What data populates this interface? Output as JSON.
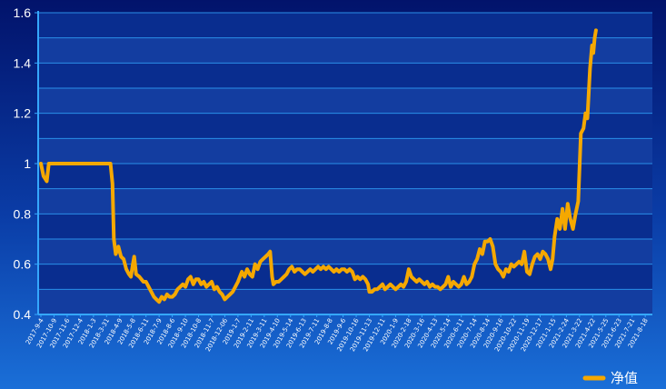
{
  "chart_data": {
    "type": "line",
    "title": "",
    "xlabel": "",
    "ylabel": "",
    "ylim": [
      0.4,
      1.6
    ],
    "yticks": [
      "0.4",
      "0.6",
      "0.8",
      "1",
      "1.2",
      "1.4",
      "1.6"
    ],
    "x_tick_labels": [
      "2017-9-4",
      "2017-10-9",
      "2017-11-6",
      "2017-12-4",
      "2018-1-3",
      "2018-3-31",
      "2018-4-9",
      "2018-5-8",
      "2018-6-11",
      "2018-7-9",
      "2018-8-6",
      "2018-9-10",
      "2018-10-8",
      "2018-11-7",
      "2018-12-06",
      "2019-1-7",
      "2019-2-11",
      "2019-3-11",
      "2019-4-10",
      "2019-5-14",
      "2019-6-13",
      "2019-7-11",
      "2019-8-8",
      "2019-9-6",
      "2019-10-16",
      "2019-11-13",
      "2019-12-11",
      "2020-1-9",
      "2020-2-18",
      "2020-3-16",
      "2020-4-13",
      "2020-5-14",
      "2020-6-11",
      "2020-7-14",
      "2020-8-14",
      "2020-9-16",
      "2020-10-22",
      "2020-11-19",
      "2020-12-17",
      "2021-1-15",
      "2021-2-24",
      "2021-3-22",
      "2021-4-22",
      "2021-5-25",
      "2021-6-23",
      "2021-7-21",
      "2021-8-18"
    ],
    "grid": true,
    "legend_position": "bottom-right",
    "series": [
      {
        "name": "净值",
        "color": "#f5a800",
        "points": [
          [
            0,
            1.0
          ],
          [
            0.2,
            0.95
          ],
          [
            0.45,
            0.93
          ],
          [
            0.6,
            1.0
          ],
          [
            2,
            1.0
          ],
          [
            4,
            1.0
          ],
          [
            5.3,
            1.0
          ],
          [
            5.45,
            0.92
          ],
          [
            5.55,
            0.7
          ],
          [
            5.7,
            0.64
          ],
          [
            5.9,
            0.67
          ],
          [
            6.1,
            0.63
          ],
          [
            6.3,
            0.62
          ],
          [
            6.5,
            0.58
          ],
          [
            6.7,
            0.56
          ],
          [
            6.85,
            0.55
          ],
          [
            7.0,
            0.6
          ],
          [
            7.1,
            0.63
          ],
          [
            7.25,
            0.56
          ],
          [
            7.5,
            0.55
          ],
          [
            7.8,
            0.53
          ],
          [
            8.0,
            0.53
          ],
          [
            8.2,
            0.51
          ],
          [
            8.4,
            0.49
          ],
          [
            8.6,
            0.47
          ],
          [
            8.8,
            0.46
          ],
          [
            9.0,
            0.45
          ],
          [
            9.2,
            0.47
          ],
          [
            9.4,
            0.46
          ],
          [
            9.6,
            0.48
          ],
          [
            9.8,
            0.47
          ],
          [
            10.0,
            0.47
          ],
          [
            10.2,
            0.48
          ],
          [
            10.4,
            0.5
          ],
          [
            10.6,
            0.51
          ],
          [
            10.8,
            0.52
          ],
          [
            11.0,
            0.51
          ],
          [
            11.2,
            0.54
          ],
          [
            11.4,
            0.55
          ],
          [
            11.6,
            0.52
          ],
          [
            11.8,
            0.54
          ],
          [
            12.0,
            0.54
          ],
          [
            12.2,
            0.52
          ],
          [
            12.4,
            0.53
          ],
          [
            12.6,
            0.51
          ],
          [
            12.8,
            0.52
          ],
          [
            13.0,
            0.53
          ],
          [
            13.2,
            0.5
          ],
          [
            13.4,
            0.51
          ],
          [
            13.6,
            0.49
          ],
          [
            13.8,
            0.48
          ],
          [
            14.0,
            0.46
          ],
          [
            14.2,
            0.47
          ],
          [
            14.4,
            0.48
          ],
          [
            14.6,
            0.49
          ],
          [
            14.8,
            0.51
          ],
          [
            15.0,
            0.53
          ],
          [
            15.3,
            0.57
          ],
          [
            15.5,
            0.55
          ],
          [
            15.7,
            0.58
          ],
          [
            15.9,
            0.56
          ],
          [
            16.1,
            0.55
          ],
          [
            16.3,
            0.6
          ],
          [
            16.5,
            0.58
          ],
          [
            16.7,
            0.61
          ],
          [
            16.9,
            0.62
          ],
          [
            17.1,
            0.63
          ],
          [
            17.3,
            0.64
          ],
          [
            17.45,
            0.65
          ],
          [
            17.6,
            0.55
          ],
          [
            17.7,
            0.52
          ],
          [
            17.9,
            0.53
          ],
          [
            18.1,
            0.53
          ],
          [
            18.3,
            0.54
          ],
          [
            18.5,
            0.55
          ],
          [
            18.7,
            0.56
          ],
          [
            18.9,
            0.58
          ],
          [
            19.1,
            0.59
          ],
          [
            19.3,
            0.57
          ],
          [
            19.5,
            0.58
          ],
          [
            19.7,
            0.58
          ],
          [
            19.9,
            0.57
          ],
          [
            20.1,
            0.56
          ],
          [
            20.3,
            0.57
          ],
          [
            20.5,
            0.58
          ],
          [
            20.7,
            0.57
          ],
          [
            20.9,
            0.58
          ],
          [
            21.1,
            0.59
          ],
          [
            21.3,
            0.58
          ],
          [
            21.5,
            0.59
          ],
          [
            21.7,
            0.58
          ],
          [
            21.9,
            0.59
          ],
          [
            22.1,
            0.58
          ],
          [
            22.3,
            0.57
          ],
          [
            22.5,
            0.58
          ],
          [
            22.7,
            0.57
          ],
          [
            22.9,
            0.58
          ],
          [
            23.1,
            0.58
          ],
          [
            23.3,
            0.57
          ],
          [
            23.5,
            0.58
          ],
          [
            23.7,
            0.57
          ],
          [
            23.9,
            0.54
          ],
          [
            24.1,
            0.55
          ],
          [
            24.3,
            0.54
          ],
          [
            24.5,
            0.55
          ],
          [
            24.7,
            0.54
          ],
          [
            24.9,
            0.52
          ],
          [
            25.0,
            0.49
          ],
          [
            25.2,
            0.49
          ],
          [
            25.4,
            0.5
          ],
          [
            25.6,
            0.5
          ],
          [
            25.8,
            0.51
          ],
          [
            26.0,
            0.52
          ],
          [
            26.2,
            0.5
          ],
          [
            26.4,
            0.51
          ],
          [
            26.6,
            0.52
          ],
          [
            26.8,
            0.51
          ],
          [
            27.0,
            0.5
          ],
          [
            27.2,
            0.51
          ],
          [
            27.4,
            0.52
          ],
          [
            27.6,
            0.51
          ],
          [
            27.8,
            0.53
          ],
          [
            28.0,
            0.58
          ],
          [
            28.2,
            0.55
          ],
          [
            28.4,
            0.54
          ],
          [
            28.6,
            0.53
          ],
          [
            28.8,
            0.54
          ],
          [
            29.0,
            0.53
          ],
          [
            29.2,
            0.52
          ],
          [
            29.4,
            0.53
          ],
          [
            29.6,
            0.51
          ],
          [
            29.8,
            0.52
          ],
          [
            30.0,
            0.51
          ],
          [
            30.2,
            0.51
          ],
          [
            30.4,
            0.5
          ],
          [
            30.6,
            0.51
          ],
          [
            30.8,
            0.52
          ],
          [
            31.0,
            0.55
          ],
          [
            31.2,
            0.51
          ],
          [
            31.4,
            0.53
          ],
          [
            31.6,
            0.52
          ],
          [
            31.8,
            0.51
          ],
          [
            32.0,
            0.52
          ],
          [
            32.2,
            0.55
          ],
          [
            32.4,
            0.52
          ],
          [
            32.6,
            0.53
          ],
          [
            32.8,
            0.55
          ],
          [
            33.0,
            0.6
          ],
          [
            33.2,
            0.62
          ],
          [
            33.4,
            0.66
          ],
          [
            33.6,
            0.64
          ],
          [
            33.8,
            0.69
          ],
          [
            34.0,
            0.69
          ],
          [
            34.2,
            0.7
          ],
          [
            34.4,
            0.67
          ],
          [
            34.6,
            0.6
          ],
          [
            34.8,
            0.58
          ],
          [
            35.0,
            0.57
          ],
          [
            35.2,
            0.55
          ],
          [
            35.4,
            0.58
          ],
          [
            35.6,
            0.57
          ],
          [
            35.8,
            0.6
          ],
          [
            36.0,
            0.59
          ],
          [
            36.2,
            0.6
          ],
          [
            36.4,
            0.61
          ],
          [
            36.6,
            0.6
          ],
          [
            36.8,
            0.65
          ],
          [
            37.0,
            0.57
          ],
          [
            37.2,
            0.56
          ],
          [
            37.4,
            0.6
          ],
          [
            37.6,
            0.63
          ],
          [
            37.8,
            0.64
          ],
          [
            38.0,
            0.62
          ],
          [
            38.2,
            0.65
          ],
          [
            38.4,
            0.64
          ],
          [
            38.6,
            0.62
          ],
          [
            38.8,
            0.58
          ],
          [
            38.95,
            0.62
          ],
          [
            39.1,
            0.71
          ],
          [
            39.3,
            0.78
          ],
          [
            39.5,
            0.74
          ],
          [
            39.7,
            0.82
          ],
          [
            39.9,
            0.74
          ],
          [
            40.1,
            0.84
          ],
          [
            40.3,
            0.78
          ],
          [
            40.5,
            0.74
          ],
          [
            40.7,
            0.8
          ],
          [
            40.9,
            0.85
          ],
          [
            41.1,
            1.12
          ],
          [
            41.3,
            1.14
          ],
          [
            41.45,
            1.2
          ],
          [
            41.6,
            1.18
          ],
          [
            41.8,
            1.38
          ],
          [
            41.95,
            1.47
          ],
          [
            42.05,
            1.44
          ],
          [
            42.15,
            1.5
          ],
          [
            42.25,
            1.53
          ]
        ]
      }
    ]
  }
}
